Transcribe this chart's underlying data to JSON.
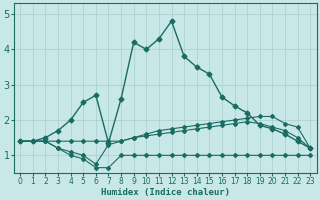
{
  "xlabel": "Humidex (Indice chaleur)",
  "bg_color": "#c8e8e8",
  "grid_color": "#a8cccc",
  "line_color": "#1a6b60",
  "xlim": [
    -0.5,
    23.5
  ],
  "ylim": [
    0.5,
    5.3
  ],
  "xticks": [
    0,
    1,
    2,
    3,
    4,
    5,
    6,
    7,
    8,
    9,
    10,
    11,
    12,
    13,
    14,
    15,
    16,
    17,
    18,
    19,
    20,
    21,
    22,
    23
  ],
  "yticks": [
    1,
    2,
    3,
    4,
    5
  ],
  "series": [
    {
      "x": [
        0,
        1,
        2,
        3,
        4,
        5,
        6,
        7,
        8,
        9,
        10,
        11,
        12,
        13,
        14,
        15,
        16,
        17,
        18,
        19,
        20,
        21,
        22,
        23
      ],
      "y": [
        1.4,
        1.4,
        1.4,
        1.2,
        1.0,
        0.9,
        0.65,
        0.65,
        1.0,
        1.0,
        1.0,
        1.0,
        1.0,
        1.0,
        1.0,
        1.0,
        1.0,
        1.0,
        1.0,
        1.0,
        1.0,
        1.0,
        1.0,
        1.0
      ],
      "marker": "D",
      "markersize": 2.0,
      "linewidth": 0.8
    },
    {
      "x": [
        0,
        1,
        2,
        3,
        4,
        5,
        6,
        7,
        8,
        9,
        10,
        11,
        12,
        13,
        14,
        15,
        16,
        17,
        18,
        19,
        20,
        21,
        22,
        23
      ],
      "y": [
        1.4,
        1.4,
        1.4,
        1.2,
        1.1,
        1.0,
        0.75,
        1.3,
        1.4,
        1.5,
        1.55,
        1.6,
        1.65,
        1.7,
        1.75,
        1.8,
        1.85,
        1.9,
        1.95,
        1.9,
        1.8,
        1.7,
        1.5,
        1.2
      ],
      "marker": "D",
      "markersize": 2.0,
      "linewidth": 0.8
    },
    {
      "x": [
        0,
        1,
        2,
        3,
        4,
        5,
        6,
        7,
        8,
        9,
        10,
        11,
        12,
        13,
        14,
        15,
        16,
        17,
        18,
        19,
        20,
        21,
        22,
        23
      ],
      "y": [
        1.4,
        1.4,
        1.5,
        1.7,
        2.0,
        2.5,
        2.7,
        1.35,
        2.6,
        4.2,
        4.0,
        4.3,
        4.8,
        3.8,
        3.5,
        3.3,
        2.65,
        2.4,
        2.2,
        1.85,
        1.75,
        1.6,
        1.4,
        1.2
      ],
      "marker": "D",
      "markersize": 2.5,
      "linewidth": 1.0
    },
    {
      "x": [
        0,
        1,
        2,
        3,
        4,
        5,
        6,
        7,
        8,
        9,
        10,
        11,
        12,
        13,
        14,
        15,
        16,
        17,
        18,
        19,
        20,
        21,
        22,
        23
      ],
      "y": [
        1.4,
        1.4,
        1.4,
        1.4,
        1.4,
        1.4,
        1.4,
        1.4,
        1.4,
        1.5,
        1.6,
        1.7,
        1.75,
        1.8,
        1.85,
        1.9,
        1.95,
        2.0,
        2.05,
        2.1,
        2.1,
        1.9,
        1.8,
        1.2
      ],
      "marker": "D",
      "markersize": 2.0,
      "linewidth": 0.8
    }
  ]
}
